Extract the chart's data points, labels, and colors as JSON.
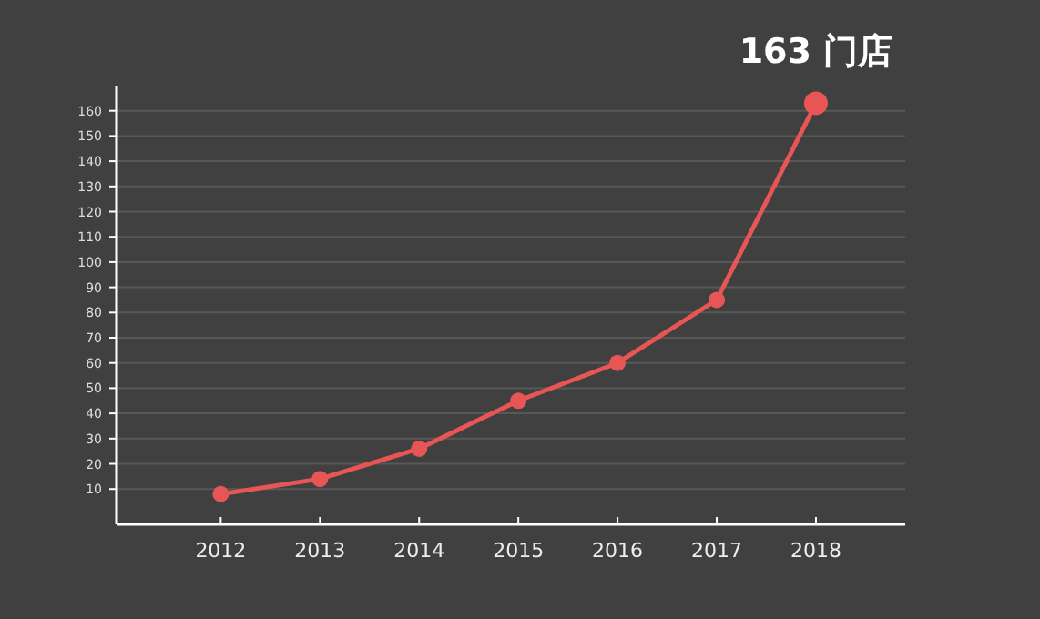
{
  "chart_data": {
    "type": "line",
    "categories": [
      "2012",
      "2013",
      "2014",
      "2015",
      "2016",
      "2017",
      "2018"
    ],
    "values": [
      8,
      14,
      26,
      45,
      60,
      85,
      163
    ],
    "color": "#e85555",
    "marker": "circle",
    "grid": "y",
    "ylim": [
      -4,
      170
    ],
    "yticks": [
      10,
      20,
      30,
      40,
      50,
      60,
      70,
      80,
      90,
      100,
      110,
      120,
      130,
      140,
      150,
      160
    ],
    "annotations": [
      {
        "text": "163 门店",
        "x": "2018",
        "y": 163
      }
    ]
  }
}
